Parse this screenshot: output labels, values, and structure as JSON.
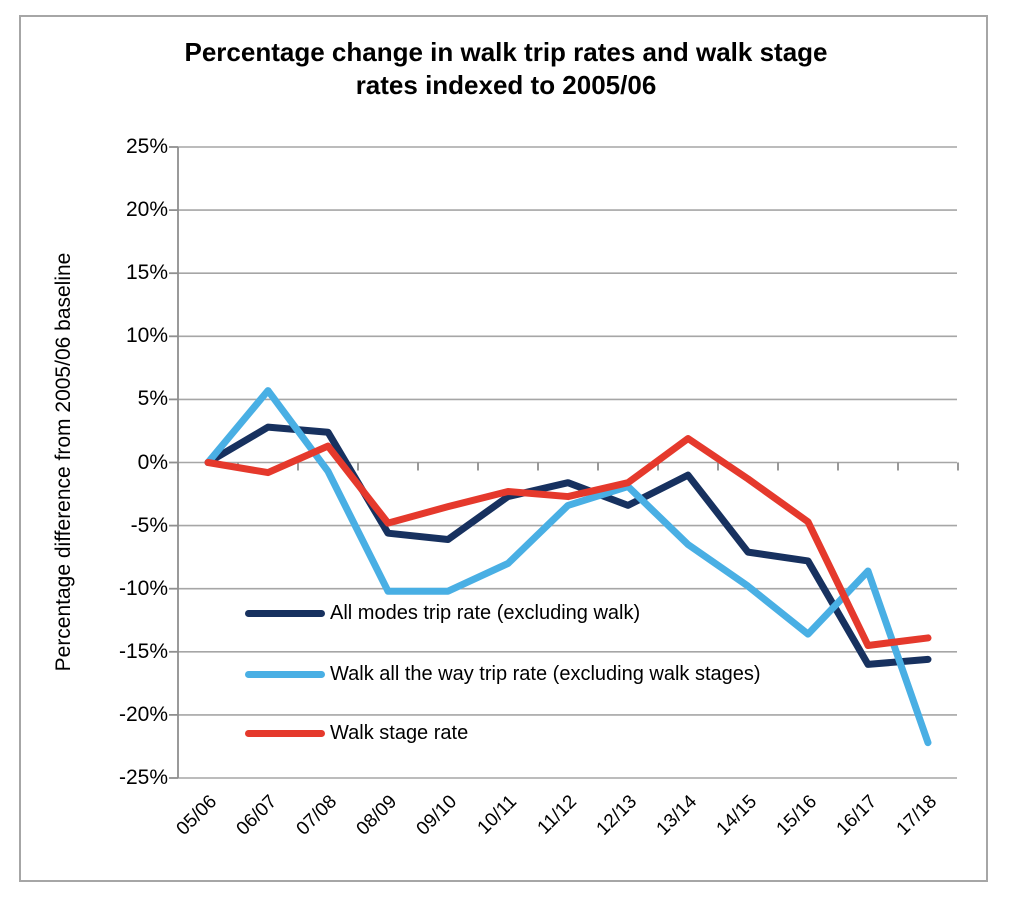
{
  "chart_data": {
    "type": "line",
    "title": "Percentage change in walk trip rates and walk stage rates indexed to 2005/06",
    "title_lines": [
      "Percentage change in walk trip rates and walk stage",
      "rates indexed to 2005/06"
    ],
    "xlabel": "",
    "ylabel": "Percentage difference from 2005/06 baseline",
    "ylim": [
      -25,
      25
    ],
    "ytick_step": 5,
    "ytick_suffix": "%",
    "grid": true,
    "legend_position": "inside-bottom-left",
    "categories": [
      "05/06",
      "06/07",
      "07/08",
      "08/09",
      "09/10",
      "10/11",
      "11/12",
      "12/13",
      "13/14",
      "14/15",
      "15/16",
      "16/17",
      "17/18"
    ],
    "series": [
      {
        "name": "All modes trip rate (excluding walk)",
        "color": "#17315f",
        "values": [
          0,
          2.8,
          2.4,
          -5.6,
          -6.1,
          -2.7,
          -1.6,
          -3.4,
          -1.0,
          -7.1,
          -7.8,
          -16.0,
          -15.6
        ]
      },
      {
        "name": "Walk all the way trip rate (excluding walk stages)",
        "color": "#49afe4",
        "values": [
          0,
          5.7,
          -0.7,
          -10.2,
          -10.2,
          -8.0,
          -3.4,
          -1.9,
          -6.5,
          -9.8,
          -13.6,
          -8.6,
          -22.2
        ]
      },
      {
        "name": "Walk stage rate",
        "color": "#e5392c",
        "values": [
          0,
          -0.8,
          1.3,
          -4.8,
          -3.5,
          -2.3,
          -2.7,
          -1.6,
          1.9,
          -1.3,
          -4.7,
          -14.5,
          -13.9
        ]
      }
    ],
    "colors": {
      "gridline": "#a6a6a6",
      "axis": "#8f8f8f",
      "border": "#a6a6a6",
      "text": "#000000"
    }
  }
}
